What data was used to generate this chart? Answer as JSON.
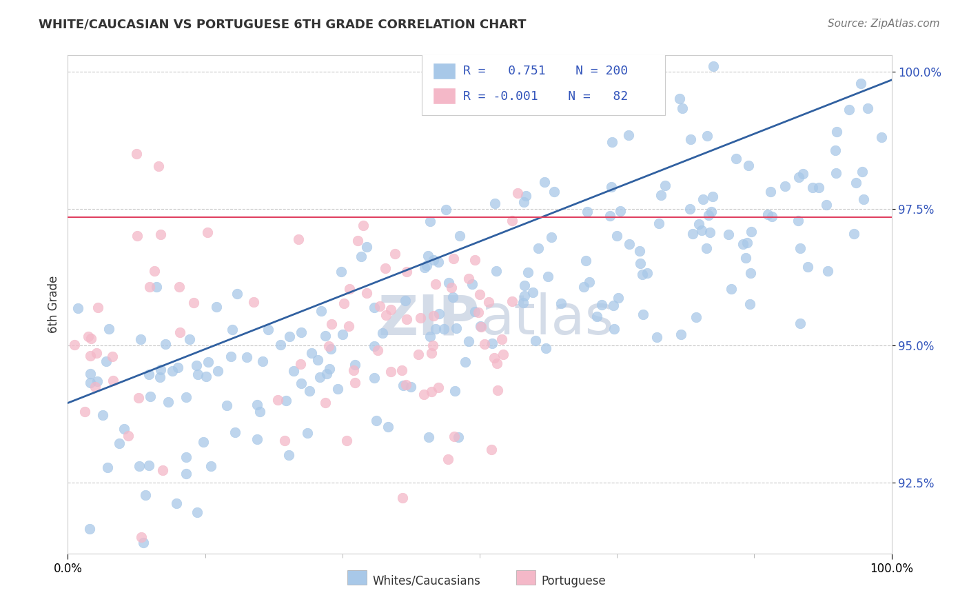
{
  "title": "WHITE/CAUCASIAN VS PORTUGUESE 6TH GRADE CORRELATION CHART",
  "source": "Source: ZipAtlas.com",
  "ylabel": "6th Grade",
  "xmin": 0.0,
  "xmax": 1.0,
  "ymin": 0.912,
  "ymax": 1.003,
  "yticks": [
    0.925,
    0.95,
    0.975,
    1.0
  ],
  "ytick_labels": [
    "92.5%",
    "95.0%",
    "97.5%",
    "100.0%"
  ],
  "blue_color": "#a8c8e8",
  "pink_color": "#f4b8c8",
  "line_blue": "#3060a0",
  "line_pink": "#e04060",
  "background_color": "#ffffff",
  "grid_color": "#c8c8c8",
  "watermark_color": "#d4dce8",
  "blue_line_y0": 0.9395,
  "blue_line_y1": 0.9985,
  "pink_line_y": 0.9735,
  "legend_r1": "R =  0.751",
  "legend_n1": "N = 200",
  "legend_r2": "R = -0.001",
  "legend_n2": "N =  82",
  "text_color_blue": "#3355bb",
  "text_color_dark": "#333333",
  "title_fontsize": 13,
  "source_fontsize": 11,
  "tick_fontsize": 12,
  "legend_fontsize": 13
}
